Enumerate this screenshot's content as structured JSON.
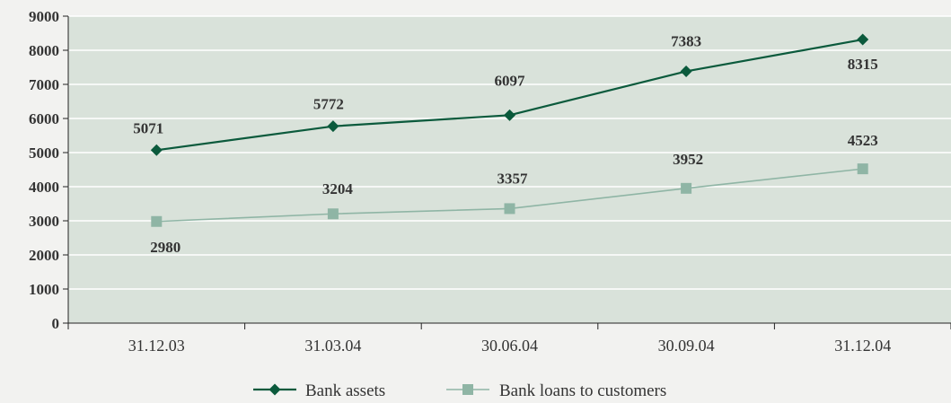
{
  "chart_data": {
    "type": "line",
    "title": "",
    "xlabel": "",
    "ylabel": "",
    "ylim": [
      0,
      9000
    ],
    "yticks": [
      0,
      1000,
      2000,
      3000,
      4000,
      5000,
      6000,
      7000,
      8000,
      9000
    ],
    "categories": [
      "31.12.03",
      "31.03.04",
      "30.06.04",
      "30.09.04",
      "31.12.04"
    ],
    "series": [
      {
        "name": "Bank assets",
        "values": [
          5071,
          5772,
          6097,
          7383,
          8315
        ],
        "color": "#0b5a3c",
        "marker": "diamond"
      },
      {
        "name": "Bank loans to customers",
        "values": [
          2980,
          3204,
          3357,
          3952,
          4523
        ],
        "color": "#8fb5a5",
        "marker": "square"
      }
    ],
    "grid": true,
    "legend": "bottom-center",
    "plot_background": "#d9e2da"
  }
}
